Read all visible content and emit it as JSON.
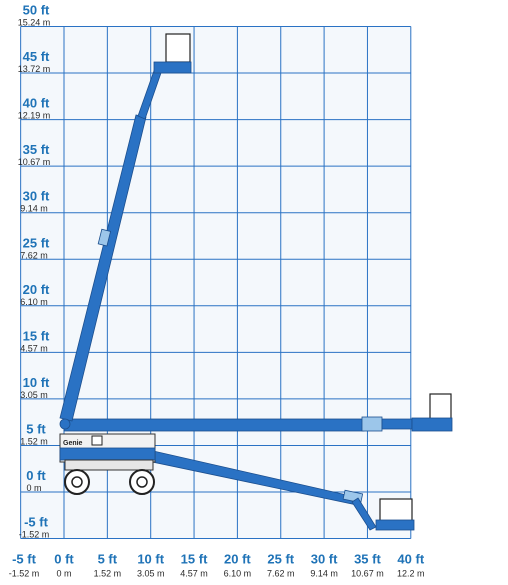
{
  "chart_data": {
    "type": "diagram",
    "title": "",
    "y_axis": {
      "min_ft": -5,
      "max_ft": 50,
      "step_ft": 5,
      "ticks": [
        {
          "ft": "50 ft",
          "m": "15.24 m"
        },
        {
          "ft": "45 ft",
          "m": "13.72 m"
        },
        {
          "ft": "40 ft",
          "m": "12.19 m"
        },
        {
          "ft": "35 ft",
          "m": "10.67 m"
        },
        {
          "ft": "30 ft",
          "m": "9.14 m"
        },
        {
          "ft": "25 ft",
          "m": "7.62 m"
        },
        {
          "ft": "20 ft",
          "m": "6.10 m"
        },
        {
          "ft": "15 ft",
          "m": "4.57 m"
        },
        {
          "ft": "10 ft",
          "m": "3.05 m"
        },
        {
          "ft": "5 ft",
          "m": "1.52 m"
        },
        {
          "ft": "0 ft",
          "m": "0 m"
        },
        {
          "ft": "-5 ft",
          "m": "-1.52 m"
        }
      ]
    },
    "x_axis": {
      "min_ft": -5,
      "max_ft": 40,
      "step_ft": 5,
      "ticks": [
        {
          "ft": "-5 ft",
          "m": "-1.52 m"
        },
        {
          "ft": "0 ft",
          "m": "0 m"
        },
        {
          "ft": "5 ft",
          "m": "1.52 m"
        },
        {
          "ft": "10 ft",
          "m": "3.05 m"
        },
        {
          "ft": "15 ft",
          "m": "4.57 m"
        },
        {
          "ft": "20 ft",
          "m": "6.10 m"
        },
        {
          "ft": "25 ft",
          "m": "7.62 m"
        },
        {
          "ft": "30 ft",
          "m": "9.14 m"
        },
        {
          "ft": "35 ft",
          "m": "10.67 m"
        },
        {
          "ft": "40 ft",
          "m": "12.2 m"
        }
      ]
    },
    "grid": true,
    "machine_label": "Genie",
    "boom_positions": [
      {
        "name": "max-height",
        "pivot": [
          -0.5,
          7
        ],
        "tip": [
          5.5,
          44.8
        ]
      },
      {
        "name": "max-outreach",
        "pivot": [
          -0.5,
          7
        ],
        "tip": [
          34,
          7
        ]
      },
      {
        "name": "below-grade",
        "pivot": [
          2,
          6
        ],
        "tip": [
          29,
          -4
        ]
      }
    ],
    "colors": {
      "boom": "#2a72c4",
      "grid": "#2a72c4",
      "label": "#1f73b7"
    }
  }
}
